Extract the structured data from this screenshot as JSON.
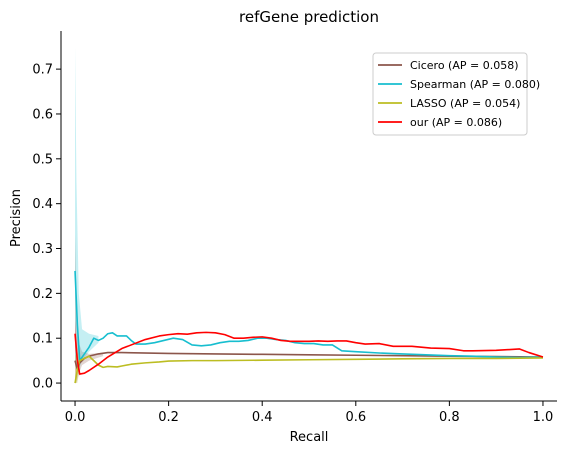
{
  "chart_data": {
    "type": "line",
    "title": "refGene prediction",
    "xlabel": "Recall",
    "ylabel": "Precision",
    "xlim": [
      -0.03,
      1.03
    ],
    "ylim": [
      -0.04,
      0.785
    ],
    "xticks": [
      0.0,
      0.2,
      0.4,
      0.6,
      0.8,
      1.0
    ],
    "xtick_labels": [
      "0.0",
      "0.2",
      "0.4",
      "0.6",
      "0.8",
      "1.0"
    ],
    "yticks": [
      0.0,
      0.1,
      0.2,
      0.3,
      0.4,
      0.5,
      0.6,
      0.7
    ],
    "ytick_labels": [
      "0.0",
      "0.1",
      "0.2",
      "0.3",
      "0.4",
      "0.5",
      "0.6",
      "0.7"
    ],
    "grid": false,
    "legend_position": "top-right",
    "series": [
      {
        "name": "Cicero (AP = 0.058)",
        "color": "#8c564b",
        "x": [
          0.0,
          0.005,
          0.01,
          0.02,
          0.03,
          0.05,
          0.07,
          0.1,
          0.2,
          0.3,
          0.4,
          0.5,
          0.6,
          0.7,
          0.8,
          0.9,
          1.0
        ],
        "y": [
          0.05,
          0.03,
          0.045,
          0.055,
          0.06,
          0.065,
          0.068,
          0.068,
          0.066,
          0.065,
          0.064,
          0.063,
          0.062,
          0.061,
          0.06,
          0.059,
          0.058
        ],
        "band": {
          "x": [
            0.0,
            0.003,
            0.008,
            0.015,
            0.03,
            0.06
          ],
          "lo": [
            0.0,
            0.0,
            0.02,
            0.04,
            0.05,
            0.06
          ],
          "hi": [
            0.33,
            0.2,
            0.09,
            0.07,
            0.065,
            0.068
          ]
        }
      },
      {
        "name": "Spearman (AP = 0.080)",
        "color": "#17becf",
        "x": [
          0.0,
          0.005,
          0.01,
          0.02,
          0.03,
          0.04,
          0.05,
          0.06,
          0.07,
          0.08,
          0.09,
          0.1,
          0.11,
          0.12,
          0.13,
          0.15,
          0.17,
          0.19,
          0.21,
          0.23,
          0.25,
          0.27,
          0.29,
          0.31,
          0.33,
          0.35,
          0.37,
          0.39,
          0.41,
          0.43,
          0.45,
          0.47,
          0.49,
          0.51,
          0.53,
          0.55,
          0.57,
          0.6,
          0.65,
          0.7,
          0.75,
          0.8,
          0.85,
          0.9,
          0.95,
          1.0
        ],
        "y": [
          0.25,
          0.13,
          0.05,
          0.065,
          0.08,
          0.1,
          0.095,
          0.1,
          0.11,
          0.112,
          0.105,
          0.105,
          0.105,
          0.095,
          0.087,
          0.087,
          0.09,
          0.095,
          0.1,
          0.097,
          0.085,
          0.083,
          0.085,
          0.09,
          0.093,
          0.093,
          0.095,
          0.1,
          0.1,
          0.097,
          0.095,
          0.09,
          0.088,
          0.088,
          0.085,
          0.085,
          0.072,
          0.07,
          0.067,
          0.065,
          0.063,
          0.061,
          0.06,
          0.058,
          0.057,
          0.058
        ],
        "band": {
          "x": [
            0.0,
            0.003,
            0.008,
            0.015,
            0.03,
            0.05
          ],
          "lo": [
            0.05,
            0.03,
            0.03,
            0.05,
            0.07,
            0.09
          ],
          "hi": [
            0.75,
            0.45,
            0.2,
            0.12,
            0.11,
            0.105
          ]
        }
      },
      {
        "name": "LASSO (AP = 0.054)",
        "color": "#bcbd22",
        "x": [
          0.0,
          0.005,
          0.01,
          0.02,
          0.03,
          0.04,
          0.05,
          0.06,
          0.07,
          0.09,
          0.1,
          0.12,
          0.15,
          0.18,
          0.2,
          0.25,
          0.3,
          0.4,
          0.5,
          0.6,
          0.7,
          0.8,
          0.9,
          1.0
        ],
        "y": [
          0.0,
          0.03,
          0.05,
          0.055,
          0.06,
          0.05,
          0.04,
          0.035,
          0.037,
          0.036,
          0.038,
          0.042,
          0.045,
          0.047,
          0.049,
          0.05,
          0.05,
          0.051,
          0.052,
          0.053,
          0.054,
          0.055,
          0.055,
          0.056
        ],
        "band": {
          "x": [
            0.0,
            0.005,
            0.01
          ],
          "lo": [
            0.0,
            0.0,
            0.03
          ],
          "hi": [
            0.06,
            0.07,
            0.06
          ]
        }
      },
      {
        "name": "our (AP = 0.086)",
        "color": "#ff0000",
        "x": [
          0.0,
          0.005,
          0.01,
          0.02,
          0.03,
          0.05,
          0.07,
          0.1,
          0.12,
          0.15,
          0.18,
          0.2,
          0.22,
          0.24,
          0.26,
          0.28,
          0.3,
          0.32,
          0.34,
          0.36,
          0.38,
          0.4,
          0.42,
          0.44,
          0.46,
          0.48,
          0.5,
          0.52,
          0.54,
          0.56,
          0.58,
          0.6,
          0.62,
          0.65,
          0.68,
          0.72,
          0.76,
          0.8,
          0.83,
          0.85,
          0.9,
          0.95,
          0.97,
          1.0
        ],
        "y": [
          0.11,
          0.05,
          0.02,
          0.022,
          0.028,
          0.042,
          0.058,
          0.077,
          0.085,
          0.097,
          0.105,
          0.108,
          0.11,
          0.109,
          0.112,
          0.113,
          0.112,
          0.108,
          0.1,
          0.1,
          0.102,
          0.103,
          0.1,
          0.095,
          0.093,
          0.093,
          0.093,
          0.094,
          0.093,
          0.094,
          0.094,
          0.09,
          0.087,
          0.088,
          0.082,
          0.082,
          0.078,
          0.077,
          0.072,
          0.072,
          0.073,
          0.076,
          0.068,
          0.058
        ],
        "band": {
          "x": [
            0.0,
            0.005,
            0.01
          ],
          "lo": [
            0.08,
            0.03,
            0.015
          ],
          "hi": [
            0.14,
            0.07,
            0.03
          ]
        }
      }
    ]
  }
}
